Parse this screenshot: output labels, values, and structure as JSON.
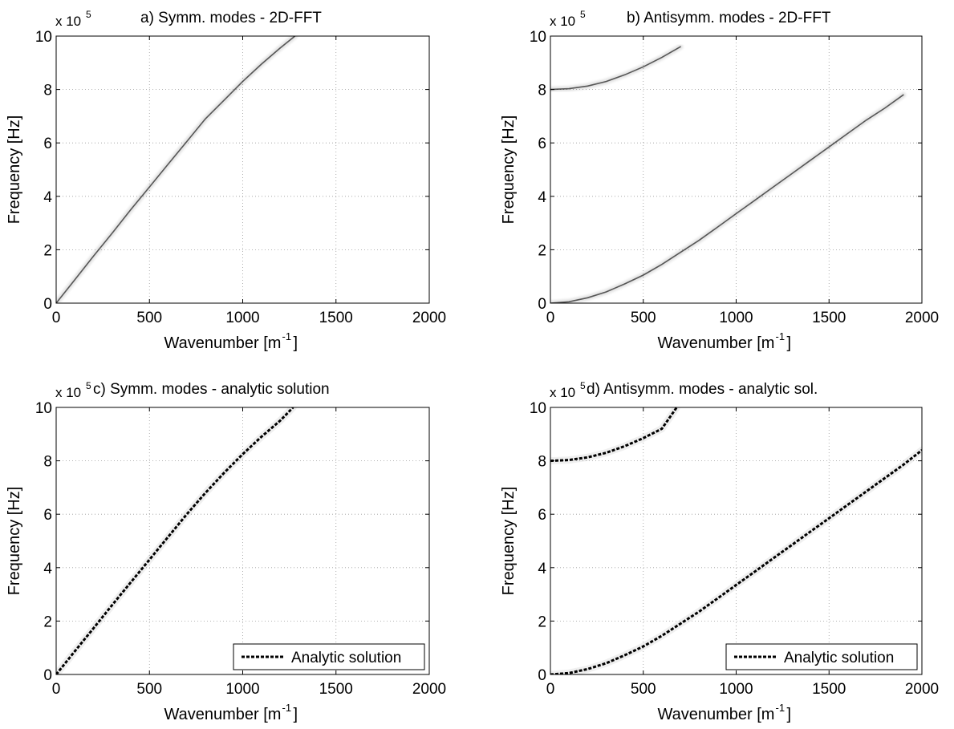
{
  "chart_data": [
    {
      "type": "heatmap",
      "title": "a) Symm. modes - 2D-FFT",
      "xlabel": "Wavenumber [m",
      "xlabel_sup": "-1",
      "xlabel_end": "]",
      "ylabel": "Frequency [Hz]",
      "y_multiplier": "x 10",
      "y_multiplier_exp": "5",
      "xlim": [
        0,
        2000
      ],
      "ylim": [
        0,
        10
      ],
      "xticks": [
        "0",
        "500",
        "1000",
        "1500",
        "2000"
      ],
      "yticks": [
        "0",
        "2",
        "4",
        "6",
        "8",
        "10"
      ],
      "grid": true,
      "series": [
        {
          "style": "intensity",
          "x": [
            0,
            100,
            200,
            300,
            400,
            500,
            600,
            700,
            800,
            900,
            1000,
            1100,
            1200,
            1280
          ],
          "y": [
            0,
            0.88,
            1.76,
            2.62,
            3.5,
            4.35,
            5.2,
            6.05,
            6.9,
            7.6,
            8.3,
            8.95,
            9.55,
            10
          ]
        }
      ]
    },
    {
      "type": "heatmap",
      "title": "b) Antisymm. modes - 2D-FFT",
      "xlabel": "Wavenumber [m",
      "xlabel_sup": "-1",
      "xlabel_end": "]",
      "ylabel": "Frequency [Hz]",
      "y_multiplier": "x 10",
      "y_multiplier_exp": "5",
      "xlim": [
        0,
        2000
      ],
      "ylim": [
        0,
        10
      ],
      "xticks": [
        "0",
        "500",
        "1000",
        "1500",
        "2000"
      ],
      "yticks": [
        "0",
        "2",
        "4",
        "6",
        "8",
        "10"
      ],
      "grid": true,
      "series": [
        {
          "style": "intensity",
          "x": [
            0,
            100,
            200,
            300,
            400,
            500,
            600,
            700,
            800,
            900,
            1000,
            1100,
            1200,
            1300,
            1400,
            1500,
            1600,
            1700,
            1800,
            1900
          ],
          "y": [
            0,
            0.05,
            0.2,
            0.42,
            0.72,
            1.05,
            1.45,
            1.9,
            2.35,
            2.85,
            3.35,
            3.85,
            4.35,
            4.85,
            5.35,
            5.85,
            6.35,
            6.85,
            7.3,
            7.8
          ]
        },
        {
          "style": "intensity",
          "x": [
            0,
            100,
            200,
            300,
            400,
            500,
            600,
            700
          ],
          "y": [
            8.0,
            8.03,
            8.13,
            8.3,
            8.55,
            8.85,
            9.2,
            9.6
          ]
        }
      ]
    },
    {
      "type": "line",
      "title": "c) Symm. modes - analytic solution",
      "xlabel": "Wavenumber [m",
      "xlabel_sup": "-1",
      "xlabel_end": "]",
      "ylabel": "Frequency [Hz]",
      "y_multiplier": "x 10",
      "y_multiplier_exp": "5",
      "xlim": [
        0,
        2000
      ],
      "ylim": [
        0,
        10
      ],
      "xticks": [
        "0",
        "500",
        "1000",
        "1500",
        "2000"
      ],
      "yticks": [
        "0",
        "2",
        "4",
        "6",
        "8",
        "10"
      ],
      "grid": true,
      "legend": {
        "label": "Analytic solution",
        "position": "bottom-right"
      },
      "series": [
        {
          "style": "dashed",
          "x": [
            0,
            100,
            200,
            300,
            400,
            500,
            600,
            700,
            800,
            900,
            1000,
            1100,
            1200,
            1270
          ],
          "y": [
            0,
            0.87,
            1.73,
            2.6,
            3.45,
            4.3,
            5.15,
            6.0,
            6.8,
            7.55,
            8.25,
            8.9,
            9.5,
            10.0
          ]
        }
      ]
    },
    {
      "type": "line",
      "title": "d) Antisymm. modes - analytic sol.",
      "xlabel": "Wavenumber [m",
      "xlabel_sup": "-1",
      "xlabel_end": "]",
      "ylabel": "Frequency [Hz]",
      "y_multiplier": "x 10",
      "y_multiplier_exp": "5",
      "xlim": [
        0,
        2000
      ],
      "ylim": [
        0,
        10
      ],
      "xticks": [
        "0",
        "500",
        "1000",
        "1500",
        "2000"
      ],
      "yticks": [
        "0",
        "2",
        "4",
        "6",
        "8",
        "10"
      ],
      "grid": true,
      "legend": {
        "label": "Analytic solution",
        "position": "bottom-right"
      },
      "series": [
        {
          "style": "dashed",
          "x": [
            0,
            100,
            200,
            300,
            400,
            500,
            600,
            700,
            800,
            900,
            1000,
            1100,
            1200,
            1300,
            1400,
            1500,
            1600,
            1700,
            1800,
            1900,
            2000
          ],
          "y": [
            0,
            0.05,
            0.2,
            0.42,
            0.72,
            1.05,
            1.45,
            1.9,
            2.35,
            2.85,
            3.35,
            3.85,
            4.35,
            4.85,
            5.35,
            5.85,
            6.35,
            6.85,
            7.35,
            7.85,
            8.4
          ]
        },
        {
          "style": "dashed",
          "x": [
            0,
            100,
            200,
            300,
            400,
            500,
            600,
            680
          ],
          "y": [
            8.0,
            8.03,
            8.13,
            8.3,
            8.55,
            8.85,
            9.2,
            10.0
          ]
        }
      ]
    }
  ]
}
